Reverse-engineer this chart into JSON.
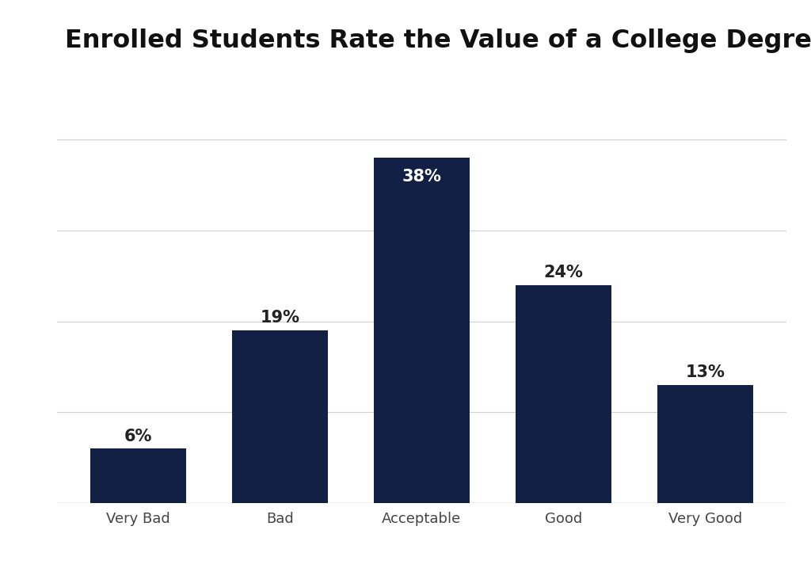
{
  "title": "Enrolled Students Rate the Value of a College Degree Today",
  "categories": [
    "Very Bad",
    "Bad",
    "Acceptable",
    "Good",
    "Very Good"
  ],
  "values": [
    6,
    19,
    38,
    24,
    13
  ],
  "labels": [
    "6%",
    "19%",
    "38%",
    "24%",
    "13%"
  ],
  "bar_color": "#122045",
  "background_color": "#ffffff",
  "title_fontsize": 23,
  "label_fontsize": 15,
  "tick_fontsize": 13,
  "ylim": [
    0,
    44
  ],
  "grid_color": "#d0d0d0",
  "grid_values": [
    10,
    20,
    30,
    40
  ],
  "bar_width": 0.68,
  "label_inside_color": "white",
  "label_outside_color": "#222222",
  "inside_threshold": 35
}
